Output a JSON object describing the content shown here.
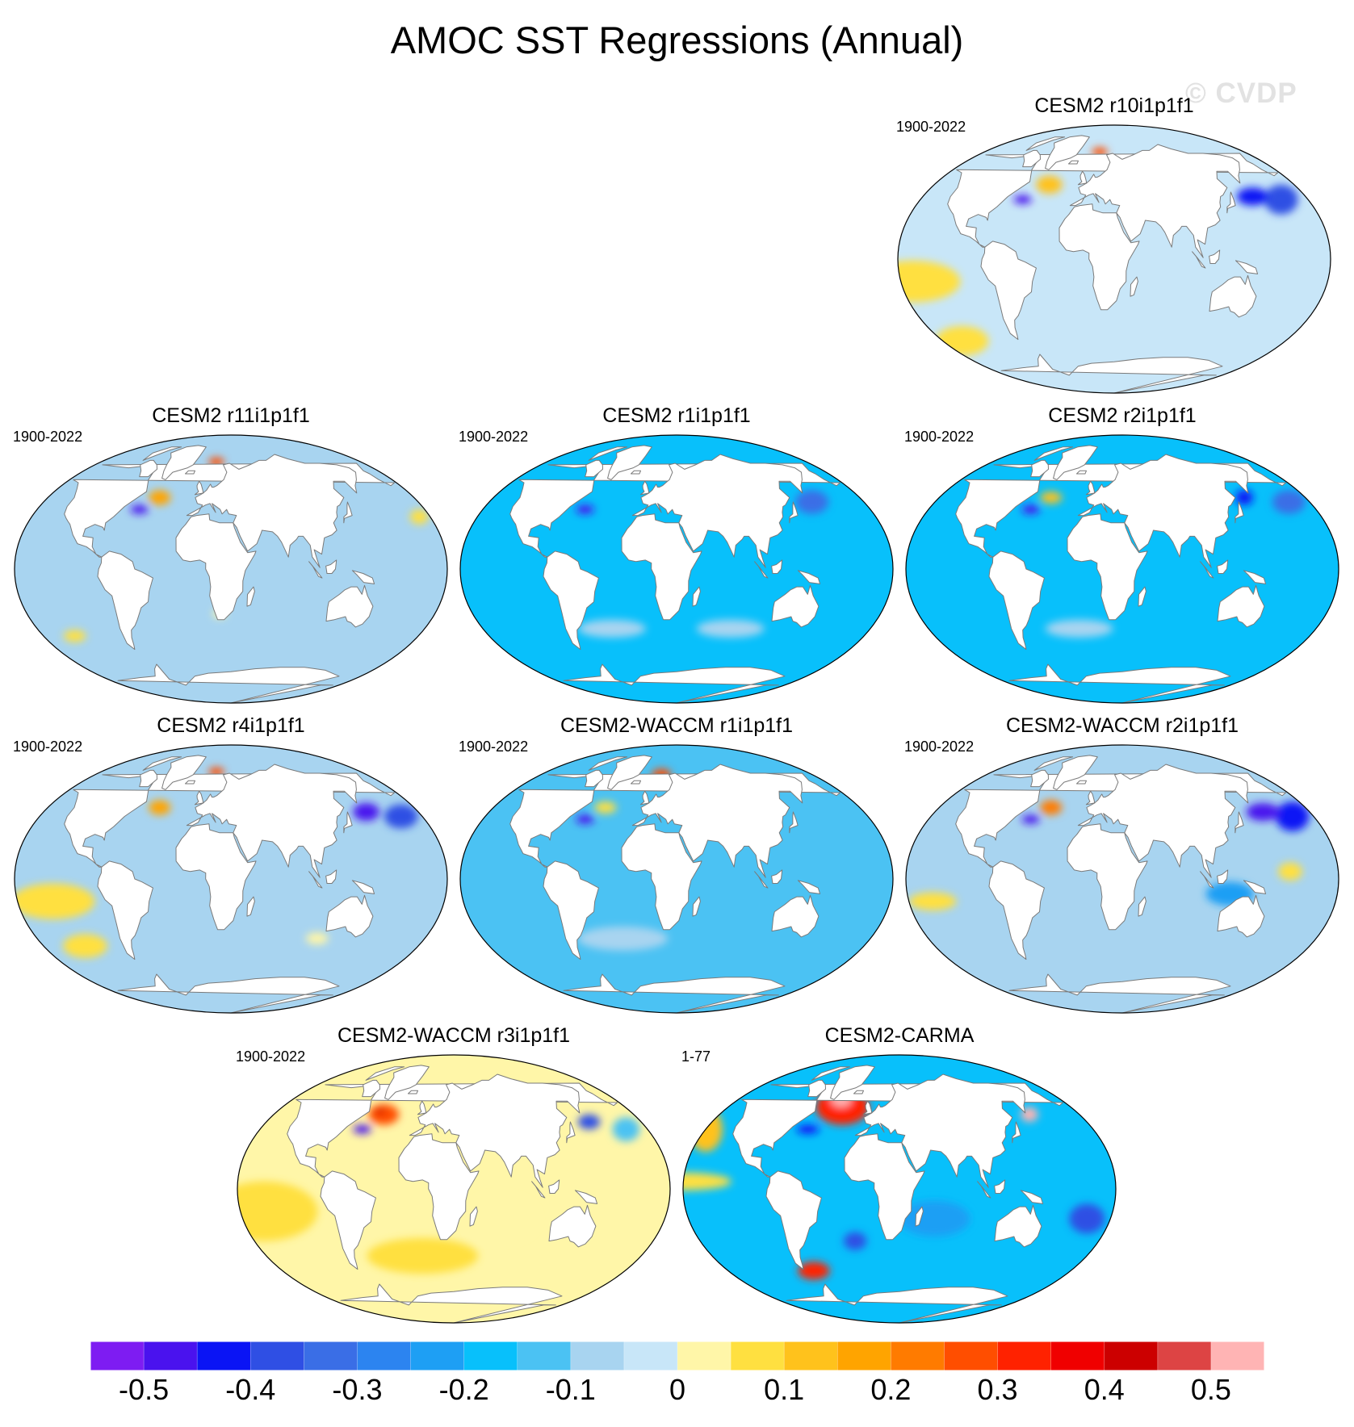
{
  "title": "AMOC SST Regressions (Annual)",
  "watermark": "© CVDP",
  "palette": [
    "#7e1cf2",
    "#4a12ee",
    "#0a14f5",
    "#2f4fe4",
    "#3a6ee6",
    "#2c84f0",
    "#1e9ff4",
    "#08c0fb",
    "#4bc2f3",
    "#a8d4f0",
    "#c8e6f8",
    "#fff6a8",
    "#ffe040",
    "#ffc21c",
    "#ffa400",
    "#ff7b00",
    "#ff4e00",
    "#ff2200",
    "#f00000",
    "#cc0000",
    "#dd4444",
    "#ffb4b4"
  ],
  "colorbar": {
    "tick_labels": [
      "-0.5",
      "-0.4",
      "-0.3",
      "-0.2",
      "-0.1",
      "0",
      "0.1",
      "0.2",
      "0.3",
      "0.4",
      "0.5"
    ]
  },
  "panels": [
    {
      "title": "CESM2 r10i1p1f1",
      "period": "1900-2022",
      "base": 10,
      "features": [
        {
          "lon": -140,
          "lat": -15,
          "rx": 40,
          "ry": 14,
          "c": 12
        },
        {
          "lon": -130,
          "lat": -55,
          "rx": 25,
          "ry": 10,
          "c": 12
        },
        {
          "lon": -35,
          "lat": 50,
          "rx": 12,
          "ry": 6,
          "c": 13
        },
        {
          "lon": 10,
          "lat": 72,
          "rx": 8,
          "ry": 3,
          "c": 16
        },
        {
          "lon": -55,
          "lat": 40,
          "rx": 8,
          "ry": 3,
          "c": 1
        },
        {
          "lon": -175,
          "lat": 40,
          "rx": 15,
          "ry": 10,
          "c": 3
        },
        {
          "lon": 160,
          "lat": 42,
          "rx": 14,
          "ry": 6,
          "c": 2
        }
      ]
    },
    {
      "title": "CESM2 r11i1p1f1",
      "period": "1900-2022",
      "base": 9,
      "features": [
        {
          "lon": -40,
          "lat": 48,
          "rx": 10,
          "ry": 5,
          "c": 14
        },
        {
          "lon": 10,
          "lat": 72,
          "rx": 8,
          "ry": 3,
          "c": 16
        },
        {
          "lon": -55,
          "lat": 40,
          "rx": 8,
          "ry": 3,
          "c": 1
        },
        {
          "lon": -160,
          "lat": 35,
          "rx": 8,
          "ry": 5,
          "c": 12
        },
        {
          "lon": -120,
          "lat": -45,
          "rx": 10,
          "ry": 4,
          "c": 12
        },
        {
          "lon": 20,
          "lat": -30,
          "rx": 6,
          "ry": 3,
          "c": 11
        }
      ]
    },
    {
      "title": "CESM2 r1i1p1f1",
      "period": "1900-2022",
      "base": 7,
      "features": [
        {
          "lon": -55,
          "lat": 40,
          "rx": 8,
          "ry": 3,
          "c": 1
        },
        {
          "lon": 160,
          "lat": 45,
          "rx": 15,
          "ry": 8,
          "c": 4
        },
        {
          "lon": -30,
          "lat": -40,
          "rx": 30,
          "ry": 6,
          "c": 9
        },
        {
          "lon": 80,
          "lat": -40,
          "rx": 30,
          "ry": 6,
          "c": 9
        }
      ]
    },
    {
      "title": "CESM2 r2i1p1f1",
      "period": "1900-2022",
      "base": 7,
      "features": [
        {
          "lon": -40,
          "lat": 48,
          "rx": 10,
          "ry": 4,
          "c": 13
        },
        {
          "lon": -55,
          "lat": 40,
          "rx": 8,
          "ry": 3,
          "c": 1
        },
        {
          "lon": 150,
          "lat": 48,
          "rx": 8,
          "ry": 5,
          "c": 2
        },
        {
          "lon": -170,
          "lat": 45,
          "rx": 15,
          "ry": 8,
          "c": 4
        },
        {
          "lon": -10,
          "lat": -40,
          "rx": 30,
          "ry": 6,
          "c": 9
        }
      ]
    },
    {
      "title": "CESM2 r4i1p1f1",
      "period": "1900-2022",
      "base": 9,
      "features": [
        {
          "lon": -120,
          "lat": -15,
          "rx": 35,
          "ry": 12,
          "c": 12
        },
        {
          "lon": -110,
          "lat": -45,
          "rx": 20,
          "ry": 8,
          "c": 12
        },
        {
          "lon": -40,
          "lat": 48,
          "rx": 10,
          "ry": 5,
          "c": 14
        },
        {
          "lon": 10,
          "lat": 72,
          "rx": 8,
          "ry": 3,
          "c": 16
        },
        {
          "lon": 160,
          "lat": 45,
          "rx": 12,
          "ry": 6,
          "c": 1
        },
        {
          "lon": -170,
          "lat": 42,
          "rx": 15,
          "ry": 8,
          "c": 3
        },
        {
          "lon": 110,
          "lat": -40,
          "rx": 10,
          "ry": 4,
          "c": 11
        }
      ]
    },
    {
      "title": "CESM2-WACCM r1i1p1f1",
      "period": "1900-2022",
      "base": 8,
      "features": [
        {
          "lon": -40,
          "lat": 48,
          "rx": 10,
          "ry": 4,
          "c": 12
        },
        {
          "lon": 10,
          "lat": 70,
          "rx": 10,
          "ry": 4,
          "c": 16
        },
        {
          "lon": -55,
          "lat": 40,
          "rx": 8,
          "ry": 3,
          "c": 1
        },
        {
          "lon": -20,
          "lat": -40,
          "rx": 40,
          "ry": 8,
          "c": 9
        }
      ]
    },
    {
      "title": "CESM2-WACCM r2i1p1f1",
      "period": "1900-2022",
      "base": 9,
      "features": [
        {
          "lon": -40,
          "lat": 48,
          "rx": 10,
          "ry": 5,
          "c": 15
        },
        {
          "lon": -55,
          "lat": 40,
          "rx": 8,
          "ry": 3,
          "c": 1
        },
        {
          "lon": -170,
          "lat": 42,
          "rx": 15,
          "ry": 10,
          "c": 2
        },
        {
          "lon": 165,
          "lat": 45,
          "rx": 15,
          "ry": 6,
          "c": 1
        },
        {
          "lon": -130,
          "lat": -15,
          "rx": 20,
          "ry": 6,
          "c": 12
        },
        {
          "lon": 170,
          "lat": 5,
          "rx": 10,
          "ry": 6,
          "c": 12
        },
        {
          "lon": 120,
          "lat": -10,
          "rx": 20,
          "ry": 8,
          "c": 6
        }
      ]
    },
    {
      "title": "CESM2-WACCM r3i1p1f1",
      "period": "1900-2022",
      "base": 11,
      "features": [
        {
          "lon": -130,
          "lat": -15,
          "rx": 45,
          "ry": 20,
          "c": 12
        },
        {
          "lon": 0,
          "lat": -45,
          "rx": 50,
          "ry": 12,
          "c": 12
        },
        {
          "lon": -40,
          "lat": 50,
          "rx": 14,
          "ry": 7,
          "c": 16
        },
        {
          "lon": -45,
          "lat": 52,
          "rx": 4,
          "ry": 2,
          "c": 19
        },
        {
          "lon": -55,
          "lat": 40,
          "rx": 8,
          "ry": 3,
          "c": 1
        },
        {
          "lon": 160,
          "lat": 45,
          "rx": 10,
          "ry": 5,
          "c": 3
        },
        {
          "lon": -170,
          "lat": 40,
          "rx": 12,
          "ry": 8,
          "c": 8
        },
        {
          "lon": 70,
          "lat": -20,
          "rx": 30,
          "ry": 15,
          "c": 11
        }
      ]
    },
    {
      "title": "CESM2-CARMA",
      "period": "1-77",
      "base": 7,
      "features": [
        {
          "lon": -30,
          "lat": 55,
          "rx": 25,
          "ry": 12,
          "c": 17
        },
        {
          "lon": -35,
          "lat": 60,
          "rx": 10,
          "ry": 5,
          "c": 21
        },
        {
          "lon": -150,
          "lat": 40,
          "rx": 15,
          "ry": 15,
          "c": 13
        },
        {
          "lon": -150,
          "lat": 5,
          "rx": 40,
          "ry": 6,
          "c": 12
        },
        {
          "lon": 160,
          "lat": 50,
          "rx": 8,
          "ry": 5,
          "c": 21
        },
        {
          "lon": -170,
          "lat": -20,
          "rx": 15,
          "ry": 10,
          "c": 3
        },
        {
          "lon": -60,
          "lat": -55,
          "rx": 15,
          "ry": 6,
          "c": 17
        },
        {
          "lon": -55,
          "lat": 40,
          "rx": 10,
          "ry": 3,
          "c": 2
        },
        {
          "lon": 60,
          "lat": -20,
          "rx": 30,
          "ry": 12,
          "c": 6
        },
        {
          "lon": -10,
          "lat": -35,
          "rx": 10,
          "ry": 6,
          "c": 3
        }
      ]
    }
  ]
}
